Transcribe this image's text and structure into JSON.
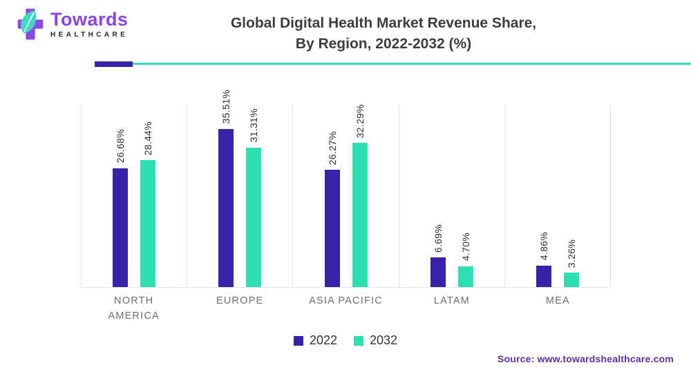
{
  "logo": {
    "brand": "Towards",
    "subbrand": "HEALTHCARE"
  },
  "header": {
    "title_line1": "Global Digital Health Market Revenue Share,",
    "title_line2": "By Region, 2022-2032 (%)"
  },
  "chart_data": {
    "type": "bar",
    "title": "Global Digital Health Market Revenue Share, By Region, 2022-2032 (%)",
    "categories": [
      "NORTH\nAMERICA",
      "EUROPE",
      "ASIA PACIFIC",
      "LATAM",
      "MEA"
    ],
    "series": [
      {
        "name": "2022",
        "color": "#3a21aa",
        "values": [
          26.68,
          35.51,
          26.27,
          6.69,
          4.86
        ]
      },
      {
        "name": "2032",
        "color": "#2ce0b2",
        "values": [
          28.44,
          31.31,
          32.29,
          4.7,
          3.26
        ]
      }
    ],
    "value_suffix": "%",
    "value_decimals": 2,
    "ylim": [
      0,
      41
    ],
    "grid": "column-dividers",
    "legend_position": "bottom"
  },
  "footer": {
    "source": "Source: www.towardshealthcare.com"
  },
  "colors": {
    "accent_purple": "#3a21aa",
    "accent_teal": "#2ce0b2",
    "logo_purple": "#8a43ef",
    "logo_cross": "#8d49e6",
    "logo_leaf": "#3fd9c0",
    "source_text": "#5a2fa8",
    "grid_line": "#e3e3e3"
  }
}
